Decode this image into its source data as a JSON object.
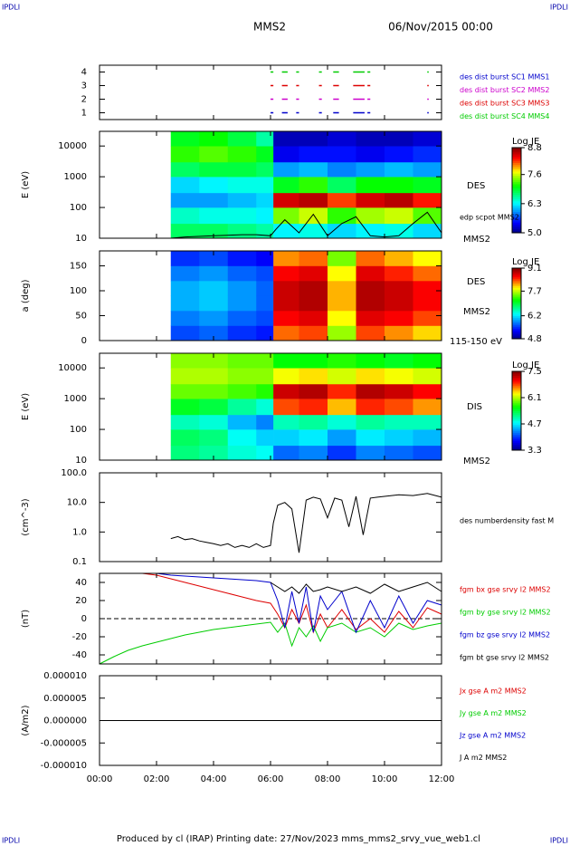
{
  "header": {
    "left": "IPDLI",
    "right": "IPDLI",
    "title": "MMS2",
    "date": "06/Nov/2015 00:00"
  },
  "footer": {
    "left": "IPDLI",
    "right": "IPDLI",
    "text": "Produced by cl (IRAP)   Printing date: 27/Nov/2023   mms_mms2_srvy_vue_web1.cl"
  },
  "chart_data": [
    {
      "type": "timeline",
      "ylim": [
        0.5,
        4.5
      ],
      "yticks": [
        1,
        2,
        3,
        4
      ],
      "series": [
        {
          "name": "des dist burst SC1 MMS1",
          "color": "#0000cc",
          "level": 1,
          "starts": [
            6.0,
            6.4,
            6.9,
            7.7,
            8.2,
            8.9,
            9.4,
            11.5
          ],
          "ends": [
            6.1,
            6.6,
            7.0,
            7.8,
            8.4,
            9.3,
            9.5,
            11.55
          ]
        },
        {
          "name": "des dist burst SC2 MMS2",
          "color": "#cc00cc",
          "level": 2,
          "starts": [
            6.0,
            6.4,
            6.9,
            7.7,
            8.2,
            8.9,
            9.4,
            11.5
          ],
          "ends": [
            6.1,
            6.6,
            7.0,
            7.8,
            8.4,
            9.3,
            9.5,
            11.55
          ]
        },
        {
          "name": "des dist burst SC3 MMS3",
          "color": "#dd0000",
          "level": 3,
          "starts": [
            6.0,
            6.4,
            6.9,
            7.7,
            8.2,
            8.9,
            9.4,
            11.5
          ],
          "ends": [
            6.1,
            6.6,
            7.0,
            7.8,
            8.4,
            9.3,
            9.5,
            11.55
          ]
        },
        {
          "name": "des dist burst SC4 MMS4",
          "color": "#00cc00",
          "level": 4,
          "starts": [
            6.0,
            6.4,
            6.9,
            7.7,
            8.2,
            8.9,
            9.4,
            11.5
          ],
          "ends": [
            6.1,
            6.6,
            7.0,
            7.8,
            8.4,
            9.3,
            9.5,
            11.55
          ]
        }
      ]
    },
    {
      "type": "spectrogram",
      "ylabel": "E (eV)",
      "log": true,
      "ylim": [
        10,
        30000
      ],
      "yticks": [
        10,
        100,
        1000,
        10000
      ],
      "time_edges": [
        2.5,
        3.5,
        4.5,
        5.5,
        6.1,
        7,
        8,
        9,
        10,
        11,
        12
      ],
      "y_edges": [
        10,
        30,
        100,
        300,
        1000,
        3000,
        10000,
        30000
      ],
      "values": [
        [
          6.8,
          6.5,
          6.0,
          6.2,
          6.8,
          7.2,
          7.0
        ],
        [
          6.8,
          6.4,
          6.0,
          6.3,
          6.9,
          7.3,
          7.1
        ],
        [
          6.7,
          6.4,
          6.1,
          6.4,
          6.9,
          7.2,
          6.9
        ],
        [
          6.6,
          6.3,
          6.2,
          6.4,
          6.8,
          7.0,
          6.6
        ],
        [
          6.3,
          7.4,
          8.5,
          7.0,
          6.0,
          5.4,
          5.2
        ],
        [
          6.4,
          7.6,
          8.6,
          7.2,
          6.1,
          5.5,
          5.2
        ],
        [
          6.2,
          7.2,
          8.2,
          6.8,
          5.9,
          5.5,
          5.3
        ],
        [
          6.3,
          7.5,
          8.5,
          7.1,
          6.0,
          5.4,
          5.2
        ],
        [
          6.4,
          7.6,
          8.6,
          7.1,
          6.1,
          5.5,
          5.2
        ],
        [
          6.2,
          7.3,
          8.3,
          7.0,
          6.0,
          5.6,
          5.3
        ]
      ],
      "clim": [
        5.0,
        8.8
      ],
      "cticks": [
        {
          "value": 5.0,
          "label": "5.0"
        },
        6.3,
        7.6,
        8.8
      ],
      "colorbar_label": "Log JE",
      "annotations": [
        "DES",
        "MMS2"
      ],
      "series": [
        {
          "name": "edp scpot MMS2",
          "color": "#000000",
          "x": [
            2.5,
            3,
            4,
            5,
            5.5,
            6,
            6.2,
            6.5,
            7,
            7.5,
            8,
            8.5,
            9,
            9.5,
            10,
            10.5,
            11,
            11.5,
            12
          ],
          "values": [
            10,
            11,
            12,
            13,
            13,
            12,
            20,
            40,
            15,
            60,
            12,
            30,
            50,
            12,
            11,
            12,
            30,
            70,
            15
          ]
        }
      ]
    },
    {
      "type": "spectrogram",
      "ylabel": "a (deg)",
      "ylim": [
        0,
        180
      ],
      "yticks": [
        0,
        50,
        100,
        150
      ],
      "time_edges": [
        2.5,
        3.5,
        4.5,
        5.5,
        6.1,
        7,
        8,
        9,
        10,
        11,
        12
      ],
      "y_edges": [
        0,
        30,
        60,
        90,
        120,
        150,
        180
      ],
      "values": [
        [
          5.6,
          5.8,
          6.0,
          6.0,
          5.8,
          5.5
        ],
        [
          5.7,
          5.9,
          6.1,
          6.1,
          5.9,
          5.6
        ],
        [
          5.5,
          5.7,
          5.9,
          5.9,
          5.7,
          5.4
        ],
        [
          5.4,
          5.6,
          5.7,
          5.7,
          5.6,
          5.3
        ],
        [
          8.3,
          8.6,
          8.8,
          8.8,
          8.6,
          8.2
        ],
        [
          8.4,
          8.7,
          8.9,
          8.9,
          8.7,
          8.3
        ],
        [
          7.6,
          7.9,
          8.1,
          8.1,
          7.9,
          7.5
        ],
        [
          8.4,
          8.7,
          8.9,
          8.9,
          8.7,
          8.3
        ],
        [
          8.2,
          8.6,
          8.8,
          8.8,
          8.5,
          8.1
        ],
        [
          8.0,
          8.4,
          8.6,
          8.6,
          8.3,
          7.9
        ]
      ],
      "clim": [
        4.8,
        9.1
      ],
      "cticks": [
        4.8,
        6.2,
        7.7,
        9.1
      ],
      "colorbar_label": "Log JE",
      "annotations": [
        "DES",
        "MMS2",
        "115-150 eV"
      ]
    },
    {
      "type": "spectrogram",
      "ylabel": "E (eV)",
      "log": true,
      "ylim": [
        10,
        30000
      ],
      "yticks": [
        10,
        100,
        1000,
        10000
      ],
      "time_edges": [
        2.5,
        3.5,
        4.5,
        5.5,
        6.1,
        7,
        8,
        9,
        10,
        11,
        12
      ],
      "y_edges": [
        10,
        30,
        100,
        300,
        1000,
        3000,
        10000,
        30000
      ],
      "values": [
        [
          5.2,
          5.3,
          5.0,
          5.5,
          5.9,
          6.1,
          6.0
        ],
        [
          5.1,
          5.2,
          4.9,
          5.4,
          5.9,
          6.1,
          6.0
        ],
        [
          4.9,
          4.8,
          4.5,
          5.1,
          5.8,
          6.0,
          5.9
        ],
        [
          4.8,
          4.6,
          4.3,
          4.9,
          5.7,
          6.0,
          5.9
        ],
        [
          4.2,
          4.6,
          5.0,
          6.8,
          7.2,
          6.3,
          5.6
        ],
        [
          4.3,
          4.7,
          5.1,
          6.9,
          7.3,
          6.4,
          5.6
        ],
        [
          4.0,
          4.4,
          4.9,
          6.5,
          6.9,
          6.2,
          5.7
        ],
        [
          4.3,
          4.7,
          5.1,
          6.9,
          7.3,
          6.4,
          5.6
        ],
        [
          4.2,
          4.6,
          5.0,
          6.8,
          7.2,
          6.3,
          5.5
        ],
        [
          4.1,
          4.5,
          5.0,
          6.6,
          7.0,
          6.2,
          5.6
        ]
      ],
      "clim": [
        3.3,
        7.5
      ],
      "cticks": [
        3.3,
        4.7,
        6.1,
        7.5
      ],
      "colorbar_label": "Log JE",
      "annotations": [
        "DIS",
        "MMS2"
      ]
    },
    {
      "type": "line",
      "ylabel": "(cm^-3)",
      "log": true,
      "ylim": [
        0.1,
        100
      ],
      "yticks": [
        0.1,
        {
          "value": 1,
          "label": "1.0"
        },
        {
          "value": 10,
          "label": "10.0"
        },
        {
          "value": 100,
          "label": "100.0"
        }
      ],
      "series": [
        {
          "name": "des numberdensity fast M",
          "color": "#000000",
          "x": [
            2.5,
            2.75,
            3,
            3.25,
            3.5,
            3.75,
            4,
            4.25,
            4.5,
            4.75,
            5,
            5.25,
            5.5,
            5.75,
            6,
            6.1,
            6.25,
            6.5,
            6.75,
            7,
            7.25,
            7.5,
            7.75,
            8,
            8.25,
            8.5,
            8.75,
            9,
            9.25,
            9.5,
            9.75,
            10,
            10.5,
            11,
            11.5,
            12
          ],
          "values": [
            0.6,
            0.7,
            0.55,
            0.6,
            0.5,
            0.45,
            0.4,
            0.35,
            0.4,
            0.3,
            0.35,
            0.3,
            0.4,
            0.3,
            0.35,
            2,
            8,
            10,
            6,
            0.2,
            12,
            15,
            13,
            3,
            14,
            12,
            1.5,
            16,
            0.8,
            14,
            15,
            16,
            18,
            17,
            20,
            15
          ]
        }
      ]
    },
    {
      "type": "line",
      "ylabel": "(nT)",
      "ylim": [
        -50,
        50
      ],
      "yticks": [
        -40,
        -20,
        0,
        20,
        40
      ],
      "zero_line": true,
      "x": [
        0,
        0.5,
        1,
        1.5,
        2,
        2.5,
        3,
        3.5,
        4,
        4.5,
        5,
        5.5,
        6,
        6.25,
        6.5,
        6.75,
        7,
        7.25,
        7.5,
        7.75,
        8,
        8.5,
        9,
        9.5,
        10,
        10.5,
        11,
        11.5,
        12
      ],
      "series": [
        {
          "name": "fgm bx gse srvy l2 MMS2",
          "color": "#dd0000",
          "values": [
            null,
            null,
            null,
            50,
            48,
            44,
            40,
            36,
            32,
            28,
            24,
            20,
            17,
            5,
            -10,
            10,
            -5,
            15,
            -15,
            5,
            -10,
            10,
            -12,
            0,
            -15,
            8,
            -10,
            12,
            5
          ]
        },
        {
          "name": "fgm by gse srvy l2 MMS2",
          "color": "#00cc00",
          "values": [
            -50,
            -42,
            -35,
            -30,
            -26,
            -22,
            -18,
            -15,
            -12,
            -10,
            -8,
            -6,
            -4,
            -15,
            -5,
            -30,
            -10,
            -20,
            -8,
            -25,
            -10,
            -5,
            -15,
            -10,
            -20,
            -5,
            -12,
            -8,
            -5
          ]
        },
        {
          "name": "fgm bz gse srvy l2 MMS2",
          "color": "#0000cc",
          "values": [
            null,
            null,
            null,
            null,
            50,
            48,
            47,
            46,
            45,
            44,
            43,
            42,
            40,
            20,
            -10,
            30,
            -5,
            35,
            -15,
            25,
            10,
            30,
            -15,
            20,
            -10,
            25,
            -5,
            20,
            15
          ]
        },
        {
          "name": "fgm bt gse srvy l2 MMS2",
          "color": "#000000",
          "values": [
            null,
            null,
            null,
            null,
            null,
            null,
            null,
            null,
            null,
            null,
            null,
            null,
            40,
            35,
            30,
            35,
            28,
            38,
            30,
            32,
            35,
            30,
            35,
            28,
            38,
            30,
            35,
            40,
            30
          ]
        }
      ]
    },
    {
      "type": "line",
      "ylabel": "(A/m2)",
      "ylim": [
        -1e-05,
        1e-05
      ],
      "yticks": [
        {
          "value": 1e-05,
          "label": "0.000010"
        },
        {
          "value": 5e-06,
          "label": "0.000005"
        },
        {
          "value": 0,
          "label": "0.000000"
        },
        {
          "value": -5e-06,
          "label": "-0.000005"
        },
        {
          "value": -1e-05,
          "label": "-0.000010"
        }
      ],
      "xlim": [
        0,
        12
      ],
      "xticks": [
        {
          "value": 0,
          "label": "00:00"
        },
        {
          "value": 2,
          "label": "02:00"
        },
        {
          "value": 4,
          "label": "04:00"
        },
        {
          "value": 6,
          "label": "06:00"
        },
        {
          "value": 8,
          "label": "08:00"
        },
        {
          "value": 10,
          "label": "10:00"
        },
        {
          "value": 12,
          "label": "12:00"
        }
      ],
      "x": [
        0,
        6,
        8,
        10,
        12
      ],
      "series": [
        {
          "name": "Jx gse A m2 MMS2",
          "color": "#dd0000",
          "values": [
            0,
            0,
            0,
            0,
            0
          ]
        },
        {
          "name": "Jy gse A m2 MMS2",
          "color": "#00cc00",
          "values": [
            0,
            0,
            0,
            0,
            0
          ]
        },
        {
          "name": "Jz gse A m2 MMS2",
          "color": "#0000cc",
          "values": [
            0,
            0,
            0,
            0,
            0
          ]
        },
        {
          "name": "J A m2 MMS2",
          "color": "#000000",
          "values": [
            0,
            0,
            0,
            0,
            0
          ]
        }
      ]
    }
  ]
}
